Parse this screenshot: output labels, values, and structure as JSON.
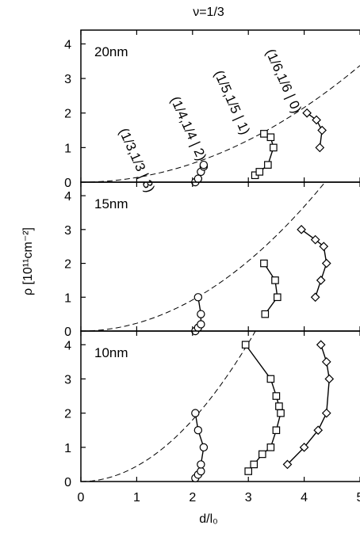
{
  "figure_title": "ν=1/3",
  "ylabel": "ρ [10¹¹cm⁻²]",
  "xlabel": "d/l₀",
  "x_ticks": [
    "0",
    "1",
    "2",
    "3",
    "4",
    "5"
  ],
  "y_ticks": [
    "0",
    "1",
    "2",
    "3",
    "4"
  ],
  "colors": {
    "axis": "#000000",
    "line": "#000000",
    "marker_fill": "#ffffff"
  },
  "chart_data": [
    {
      "type": "line",
      "panel_label": "20nm",
      "xlim": [
        0,
        5
      ],
      "ylim": [
        0,
        4.4
      ],
      "dashed_curve": {
        "a": 0.135,
        "power": 2
      },
      "annotations": [
        "(1/3,1/3 | 3)",
        "(1/4,1/4 | 2)",
        "(1/5,1/5 | 1)",
        "(1/6,1/6 | 0)"
      ],
      "series": [
        {
          "marker": "circle",
          "x": [
            2.05,
            2.1,
            2.15,
            2.2,
            2.2
          ],
          "y": [
            0.0,
            0.1,
            0.3,
            0.45,
            0.5
          ]
        },
        {
          "marker": "square",
          "x": [
            3.12,
            3.2,
            3.35,
            3.45,
            3.4,
            3.28
          ],
          "y": [
            0.2,
            0.3,
            0.5,
            1.0,
            1.3,
            1.4
          ]
        },
        {
          "marker": "diamond",
          "x": [
            4.28,
            4.32,
            4.22,
            4.05
          ],
          "y": [
            1.0,
            1.5,
            1.8,
            2.0
          ]
        }
      ]
    },
    {
      "type": "line",
      "panel_label": "15nm",
      "xlim": [
        0,
        5
      ],
      "ylim": [
        0,
        4.4
      ],
      "dashed_curve": {
        "a": 0.23,
        "power": 2
      },
      "annotations": [],
      "series": [
        {
          "marker": "circle",
          "x": [
            2.05,
            2.1,
            2.15,
            2.15,
            2.1
          ],
          "y": [
            0.0,
            0.1,
            0.2,
            0.5,
            1.0
          ]
        },
        {
          "marker": "square",
          "x": [
            3.3,
            3.52,
            3.48,
            3.28
          ],
          "y": [
            0.5,
            1.0,
            1.5,
            2.0
          ]
        },
        {
          "marker": "diamond",
          "x": [
            4.2,
            4.3,
            4.4,
            4.35,
            4.2,
            3.95
          ],
          "y": [
            1.0,
            1.5,
            2.0,
            2.5,
            2.7,
            3.0
          ]
        }
      ]
    },
    {
      "type": "line",
      "panel_label": "10nm",
      "xlim": [
        0,
        5
      ],
      "ylim": [
        0,
        4.4
      ],
      "dashed_curve": {
        "a": 0.45,
        "power": 2
      },
      "annotations": [],
      "series": [
        {
          "marker": "circle",
          "x": [
            2.05,
            2.1,
            2.15,
            2.15,
            2.2,
            2.1,
            2.05
          ],
          "y": [
            0.1,
            0.2,
            0.3,
            0.5,
            1.0,
            1.5,
            2.0
          ]
        },
        {
          "marker": "square",
          "x": [
            3.0,
            3.1,
            3.25,
            3.4,
            3.5,
            3.58,
            3.55,
            3.5,
            3.4,
            2.95
          ],
          "y": [
            0.3,
            0.5,
            0.8,
            1.0,
            1.5,
            2.0,
            2.2,
            2.5,
            3.0,
            4.0
          ]
        },
        {
          "marker": "diamond",
          "x": [
            3.7,
            4.0,
            4.25,
            4.4,
            4.45,
            4.4,
            4.3
          ],
          "y": [
            0.5,
            1.0,
            1.5,
            2.0,
            3.0,
            3.5,
            4.0
          ]
        }
      ]
    }
  ]
}
